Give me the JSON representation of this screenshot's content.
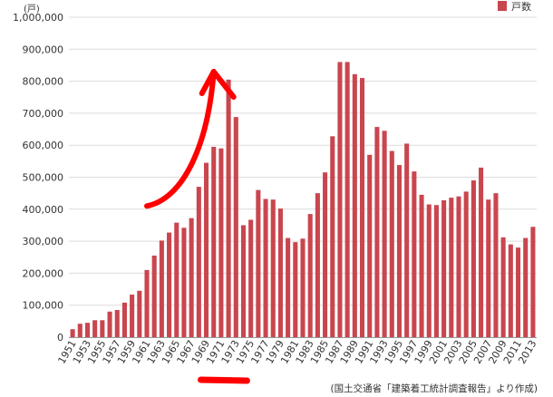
{
  "chart_data": {
    "type": "bar",
    "unit_label": "(戸)",
    "legend": {
      "entry": "戸数",
      "placement": "top-right"
    },
    "source_note": "(国土交通省「建築着工統計調査報告」より作成)",
    "series": [
      {
        "name": "戸数",
        "color": "#c9464f",
        "x": [
          1951,
          1952,
          1953,
          1954,
          1955,
          1956,
          1957,
          1958,
          1959,
          1960,
          1961,
          1962,
          1963,
          1964,
          1965,
          1966,
          1967,
          1968,
          1969,
          1970,
          1971,
          1972,
          1973,
          1974,
          1975,
          1976,
          1977,
          1978,
          1979,
          1980,
          1981,
          1982,
          1983,
          1984,
          1985,
          1986,
          1987,
          1988,
          1989,
          1990,
          1991,
          1992,
          1993,
          1994,
          1995,
          1996,
          1997,
          1998,
          1999,
          2000,
          2001,
          2002,
          2003,
          2004,
          2005,
          2006,
          2007,
          2008,
          2009,
          2010,
          2011,
          2012,
          2013
        ],
        "values": [
          25000,
          42000,
          45000,
          53000,
          53000,
          80000,
          85000,
          108000,
          133000,
          145000,
          210000,
          255000,
          302000,
          327000,
          358000,
          342000,
          372000,
          470000,
          545000,
          595000,
          590000,
          805000,
          688000,
          350000,
          367000,
          460000,
          432000,
          430000,
          402000,
          310000,
          297000,
          308000,
          385000,
          450000,
          515000,
          628000,
          860000,
          860000,
          822000,
          810000,
          570000,
          657000,
          645000,
          582000,
          538000,
          605000,
          518000,
          445000,
          415000,
          413000,
          428000,
          436000,
          440000,
          455000,
          490000,
          530000,
          430000,
          450000,
          312000,
          290000,
          280000,
          310000,
          345000
        ]
      }
    ],
    "x_tick_labels": [
      "1951",
      "1953",
      "1955",
      "1957",
      "1959",
      "1961",
      "1963",
      "1965",
      "1967",
      "1969",
      "1971",
      "1973",
      "1975",
      "1977",
      "1979",
      "1981",
      "1983",
      "1985",
      "1987",
      "1989",
      "1991",
      "1993",
      "1995",
      "1997",
      "1999",
      "2001",
      "2003",
      "2005",
      "2007",
      "2009",
      "2011",
      "2013"
    ],
    "y_ticks": [
      "0",
      "100,000",
      "200,000",
      "300,000",
      "400,000",
      "500,000",
      "600,000",
      "700,000",
      "800,000",
      "900,000",
      "1,000,000"
    ],
    "ylim": [
      0,
      1000000
    ],
    "grid": true,
    "annotations": [
      {
        "type": "hand-drawn-arrow",
        "color": "#ff0000",
        "from_year": 1961,
        "from_value": 410000,
        "to_year": 1970,
        "to_value": 830000
      },
      {
        "type": "hand-drawn-underline",
        "color": "#ff0000",
        "from_year": 1969,
        "to_year": 1974
      }
    ]
  }
}
